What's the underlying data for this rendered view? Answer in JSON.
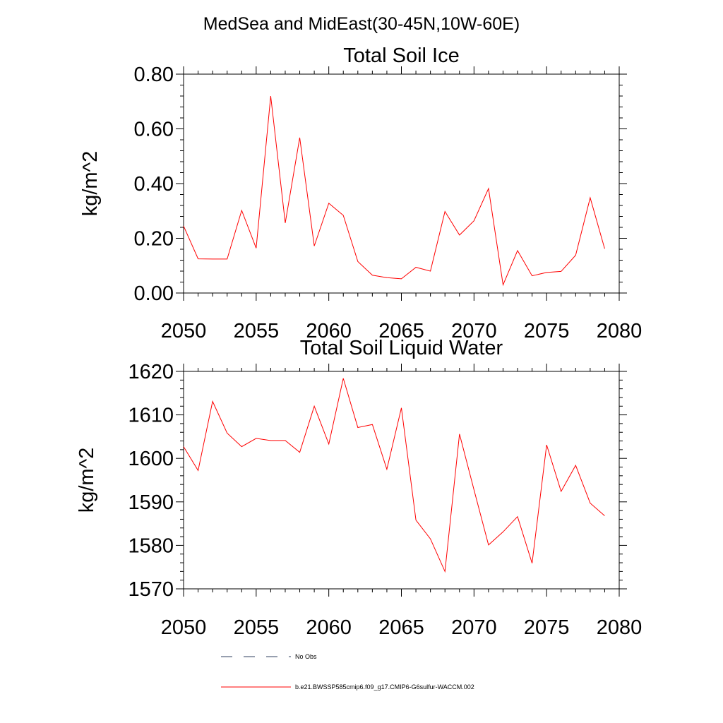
{
  "header": {
    "region_title": "MedSea and MidEast(30-45N,10W-60E)"
  },
  "chart_data": [
    {
      "type": "line",
      "title": "Total Soil Ice",
      "ylabel": "kg/m^2",
      "xlabel": "",
      "xlim": [
        2050,
        2080
      ],
      "ylim": [
        0,
        0.8
      ],
      "xticks": [
        2050,
        2055,
        2060,
        2065,
        2070,
        2075,
        2080
      ],
      "xtick_labels": [
        "2050",
        "2055",
        "2060",
        "2065",
        "2070",
        "2075",
        "2080"
      ],
      "yticks": [
        0,
        0.2,
        0.4,
        0.6,
        0.8
      ],
      "ytick_labels": [
        "0.00",
        "0.20",
        "0.40",
        "0.60",
        "0.80"
      ],
      "x": [
        2050,
        2051,
        2052,
        2053,
        2054,
        2055,
        2056,
        2057,
        2058,
        2059,
        2060,
        2061,
        2062,
        2063,
        2064,
        2065,
        2066,
        2067,
        2068,
        2069,
        2070,
        2071,
        2072,
        2073,
        2074,
        2075,
        2076,
        2077,
        2078,
        2079
      ],
      "series": [
        {
          "name": "b.e21.BWSSP585cmip6.f09_g17.CMIP6-G6sulfur-WACCM.002",
          "color": "#ff0000",
          "values": [
            0.245,
            0.125,
            0.124,
            0.124,
            0.302,
            0.164,
            0.72,
            0.256,
            0.568,
            0.172,
            0.328,
            0.284,
            0.115,
            0.065,
            0.056,
            0.052,
            0.094,
            0.08,
            0.298,
            0.212,
            0.264,
            0.382,
            0.03,
            0.155,
            0.063,
            0.075,
            0.079,
            0.138,
            0.348,
            0.162
          ]
        }
      ]
    },
    {
      "type": "line",
      "title": "Total Soil Liquid Water",
      "ylabel": "kg/m^2",
      "xlabel": "",
      "xlim": [
        2050,
        2080
      ],
      "ylim": [
        1570,
        1620
      ],
      "xticks": [
        2050,
        2055,
        2060,
        2065,
        2070,
        2075,
        2080
      ],
      "xtick_labels": [
        "2050",
        "2055",
        "2060",
        "2065",
        "2070",
        "2075",
        "2080"
      ],
      "yticks": [
        1570,
        1580,
        1590,
        1600,
        1610,
        1620
      ],
      "ytick_labels": [
        "1570",
        "1580",
        "1590",
        "1600",
        "1610",
        "1620"
      ],
      "x": [
        2050,
        2051,
        2052,
        2053,
        2054,
        2055,
        2056,
        2057,
        2058,
        2059,
        2060,
        2061,
        2062,
        2063,
        2064,
        2065,
        2066,
        2067,
        2068,
        2069,
        2070,
        2071,
        2072,
        2073,
        2074,
        2075,
        2076,
        2077,
        2078,
        2079
      ],
      "series": [
        {
          "name": "b.e21.BWSSP585cmip6.f09_g17.CMIP6-G6sulfur-WACCM.002",
          "color": "#ff0000",
          "values": [
            1602.7,
            1597.2,
            1613.1,
            1605.8,
            1602.7,
            1604.6,
            1604.1,
            1604.1,
            1601.4,
            1612.0,
            1603.3,
            1618.4,
            1607.1,
            1607.8,
            1597.5,
            1611.6,
            1585.8,
            1581.5,
            1574.0,
            1605.6,
            1592.8,
            1580.1,
            1583.1,
            1586.6,
            1575.9,
            1603.1,
            1592.4,
            1598.4,
            1589.7,
            1586.8
          ]
        }
      ]
    }
  ],
  "legend": [
    {
      "label": "No Obs",
      "style": "dashed",
      "color": "#2f3f5f"
    },
    {
      "label": "b.e21.BWSSP585cmip6.f09_g17.CMIP6-G6sulfur-WACCM.002",
      "style": "solid",
      "color": "#ff0000"
    }
  ]
}
